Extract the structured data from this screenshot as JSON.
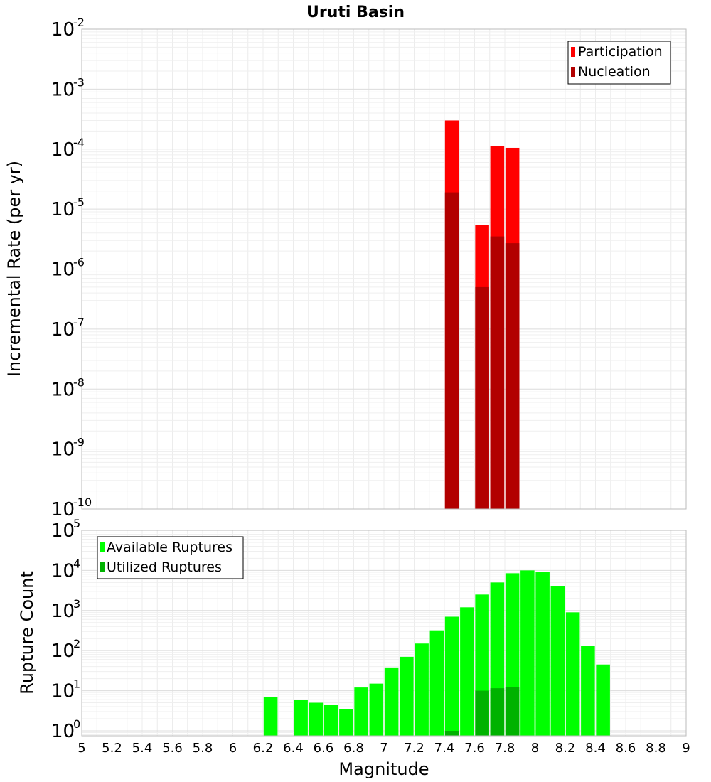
{
  "chart_data": [
    {
      "type": "bar",
      "title": "Uruti Basin",
      "ylabel": "Incremental Rate (per yr)",
      "y_scale": "log",
      "ylim": [
        1e-10,
        0.01
      ],
      "xlim": [
        5,
        9
      ],
      "grid": true,
      "legend_position": "top-right",
      "y_tick_exponents": [
        "-10",
        "-9",
        "-8",
        "-7",
        "-6",
        "-5",
        "-4",
        "-3",
        "-2"
      ],
      "series": [
        {
          "name": "Participation",
          "color": "#ff0000",
          "points": [
            {
              "x": 7.45,
              "y": 0.0003
            },
            {
              "x": 7.65,
              "y": 5.5e-06
            },
            {
              "x": 7.75,
              "y": 0.000112
            },
            {
              "x": 7.85,
              "y": 0.000105
            }
          ]
        },
        {
          "name": "Nucleation",
          "color": "#b20000",
          "points": [
            {
              "x": 7.45,
              "y": 1.9e-05
            },
            {
              "x": 7.65,
              "y": 5e-07
            },
            {
              "x": 7.75,
              "y": 3.5e-06
            },
            {
              "x": 7.85,
              "y": 2.7e-06
            }
          ]
        }
      ]
    },
    {
      "type": "bar",
      "title": "",
      "xlabel": "Magnitude",
      "ylabel": "Rupture Count",
      "y_scale": "log",
      "ylim": [
        0.75,
        100000
      ],
      "xlim": [
        5,
        9
      ],
      "grid": true,
      "legend_position": "top-left",
      "y_tick_exponents": [
        "0",
        "1",
        "2",
        "3",
        "4",
        "5"
      ],
      "x_ticks": [
        "5",
        "5.2",
        "5.4",
        "5.6",
        "5.8",
        "6",
        "6.2",
        "6.4",
        "6.6",
        "6.8",
        "7",
        "7.2",
        "7.4",
        "7.6",
        "7.8",
        "8",
        "8.2",
        "8.4",
        "8.6",
        "8.8",
        "9"
      ],
      "series": [
        {
          "name": "Available Ruptures",
          "color": "#00ff00",
          "points": [
            {
              "x": 6.25,
              "y": 7
            },
            {
              "x": 6.45,
              "y": 6
            },
            {
              "x": 6.55,
              "y": 5
            },
            {
              "x": 6.65,
              "y": 4.5
            },
            {
              "x": 6.75,
              "y": 3.5
            },
            {
              "x": 6.85,
              "y": 12
            },
            {
              "x": 6.95,
              "y": 15
            },
            {
              "x": 7.05,
              "y": 38
            },
            {
              "x": 7.15,
              "y": 70
            },
            {
              "x": 7.25,
              "y": 150
            },
            {
              "x": 7.35,
              "y": 320
            },
            {
              "x": 7.45,
              "y": 700
            },
            {
              "x": 7.55,
              "y": 1200
            },
            {
              "x": 7.65,
              "y": 2500
            },
            {
              "x": 7.75,
              "y": 5000
            },
            {
              "x": 7.85,
              "y": 8500
            },
            {
              "x": 7.95,
              "y": 10000
            },
            {
              "x": 8.05,
              "y": 9000
            },
            {
              "x": 8.15,
              "y": 4000
            },
            {
              "x": 8.25,
              "y": 900
            },
            {
              "x": 8.35,
              "y": 130
            },
            {
              "x": 8.45,
              "y": 45
            }
          ]
        },
        {
          "name": "Utilized Ruptures",
          "color": "#00b200",
          "points": [
            {
              "x": 7.45,
              "y": 1
            },
            {
              "x": 7.65,
              "y": 10
            },
            {
              "x": 7.75,
              "y": 11.5
            },
            {
              "x": 7.85,
              "y": 12.5
            }
          ]
        }
      ]
    }
  ]
}
